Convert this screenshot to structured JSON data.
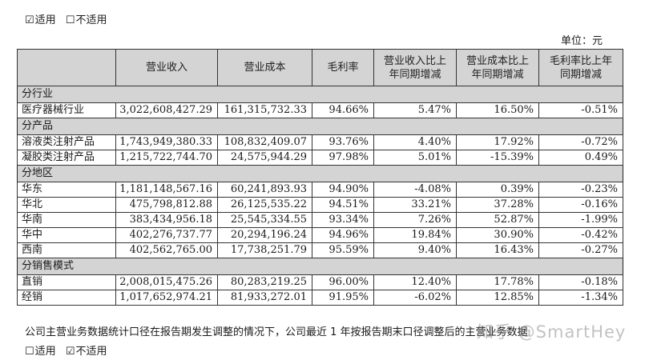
{
  "top_applicability": {
    "options": [
      {
        "mark": "☑",
        "label": "适用"
      },
      {
        "mark": "☐",
        "label": "不适用"
      }
    ]
  },
  "unit_label": "单位：元",
  "table": {
    "headers": [
      "",
      "营业收入",
      "营业成本",
      "毛利率",
      "营业收入比上\n年同期增减",
      "营业成本比上\n年同期增减",
      "毛利率比上年\n同期增减"
    ],
    "header_lines": [
      {
        "l1": "",
        "l2": ""
      },
      {
        "l1": "营业收入",
        "l2": ""
      },
      {
        "l1": "营业成本",
        "l2": ""
      },
      {
        "l1": "毛利率",
        "l2": ""
      },
      {
        "l1": "营业收入比上",
        "l2": "年同期增减"
      },
      {
        "l1": "营业成本比上",
        "l2": "年同期增减"
      },
      {
        "l1": "毛利率比上年",
        "l2": "同期增减"
      }
    ],
    "groups": [
      {
        "title": "分行业",
        "rows": [
          [
            "医疗器械行业",
            "3,022,608,427.29",
            "161,315,732.33",
            "94.66%",
            "5.47%",
            "16.50%",
            "-0.51%"
          ]
        ]
      },
      {
        "title": "分产品",
        "rows": [
          [
            "溶液类注射产品",
            "1,743,949,380.33",
            "108,832,409.07",
            "93.76%",
            "4.40%",
            "17.92%",
            "-0.72%"
          ],
          [
            "凝胶类注射产品",
            "1,215,722,744.70",
            "24,575,944.29",
            "97.98%",
            "5.01%",
            "-15.39%",
            "0.49%"
          ]
        ]
      },
      {
        "title": "分地区",
        "rows": [
          [
            "华东",
            "1,181,148,567.16",
            "60,241,893.93",
            "94.90%",
            "-4.08%",
            "0.39%",
            "-0.23%"
          ],
          [
            "华北",
            "475,798,812.88",
            "26,125,535.22",
            "94.51%",
            "33.21%",
            "37.28%",
            "-0.16%"
          ],
          [
            "华南",
            "383,434,956.18",
            "25,545,334.55",
            "93.34%",
            "7.26%",
            "52.87%",
            "-1.99%"
          ],
          [
            "华中",
            "402,276,737.77",
            "20,294,196.24",
            "94.96%",
            "19.84%",
            "30.90%",
            "-0.42%"
          ],
          [
            "西南",
            "402,562,765.00",
            "17,738,251.79",
            "95.59%",
            "9.40%",
            "16.43%",
            "-0.27%"
          ]
        ]
      },
      {
        "title": "分销售模式",
        "rows": [
          [
            "直销",
            "2,008,015,475.26",
            "80,283,219.25",
            "96.00%",
            "12.40%",
            "17.78%",
            "-0.18%"
          ],
          [
            "经销",
            "1,017,652,974.21",
            "81,933,272.01",
            "91.95%",
            "-6.02%",
            "12.85%",
            "-1.34%"
          ]
        ]
      }
    ]
  },
  "footnote": "公司主营业务数据统计口径在报告期发生调整的情况下，公司最近 1 年按报告期末口径调整后的主营业务数据",
  "bottom_applicability": {
    "options": [
      {
        "mark": "☐",
        "label": "适用"
      },
      {
        "mark": "☑",
        "label": "不适用"
      }
    ]
  },
  "watermark": "知乎 @SmartHey",
  "colors": {
    "header_bg": "#d4d4d4",
    "border": "#333333",
    "text": "#1a1a1a"
  }
}
